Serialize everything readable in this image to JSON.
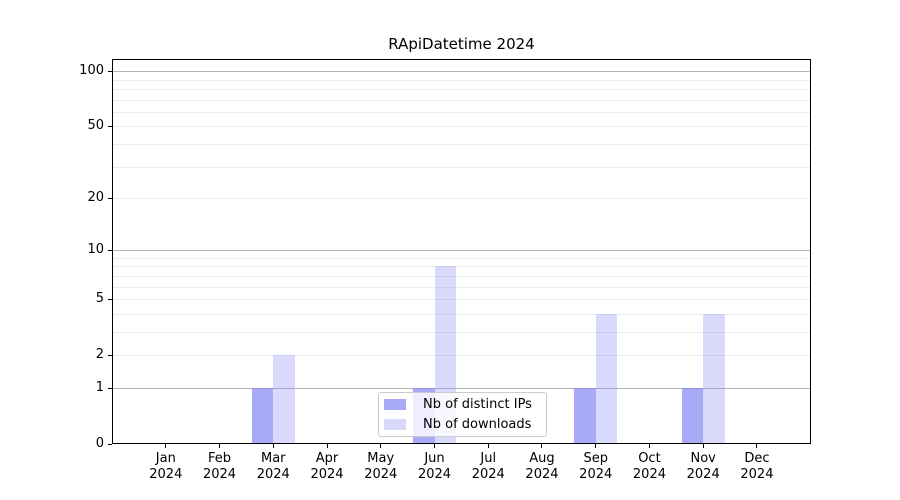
{
  "chart_data": {
    "type": "bar",
    "title": "RApiDatetime 2024",
    "x": {
      "months": [
        "Jan",
        "Feb",
        "Mar",
        "Apr",
        "May",
        "Jun",
        "Jul",
        "Aug",
        "Sep",
        "Oct",
        "Nov",
        "Dec"
      ],
      "year": "2024"
    },
    "series": [
      {
        "name": "Nb of distinct IPs",
        "color": "rgba(134,136,244,0.72)",
        "values": [
          0,
          0,
          1,
          0,
          0,
          1,
          0,
          0,
          1,
          0,
          1,
          0
        ]
      },
      {
        "name": "Nb of downloads",
        "color": "rgba(134,136,244,0.32)",
        "values": [
          0,
          0,
          2,
          0,
          0,
          8,
          0,
          0,
          4,
          0,
          4,
          0
        ]
      }
    ],
    "yscale": "log1p",
    "ylim": [
      0,
      116
    ],
    "ytick_values": [
      0,
      1,
      2,
      5,
      10,
      20,
      50,
      100
    ],
    "ytick_labels": [
      "0",
      "1",
      "2",
      "5",
      "10",
      "20",
      "50",
      "100"
    ],
    "grid_major_values": [
      1,
      10,
      100
    ],
    "grid_minor_values": [
      2,
      3,
      4,
      5,
      6,
      7,
      8,
      9,
      20,
      30,
      40,
      50,
      60,
      70,
      80,
      90
    ],
    "legend_position": "lower center",
    "colors": {
      "grid_major": "#b3b3b3",
      "grid_minor": "#ececec",
      "spine": "#000000",
      "text": "#000000",
      "legend_border": "#cccccc",
      "legend_bg": "rgba(255,255,255,0.8)"
    }
  }
}
